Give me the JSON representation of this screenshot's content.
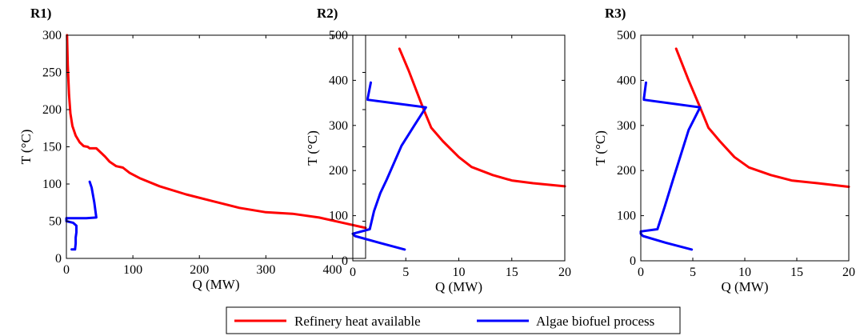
{
  "legend": {
    "items": [
      {
        "label": "Refinery heat available",
        "color": "#ff0000"
      },
      {
        "label": "Algae biofuel process",
        "color": "#0000ff"
      }
    ]
  },
  "chart_data": [
    {
      "type": "line",
      "panel_label": "R1)",
      "xlabel": "Q (MW)",
      "ylabel": "T (°C)",
      "xlim": [
        0,
        450
      ],
      "ylim": [
        0,
        300
      ],
      "xticks": [
        0,
        100,
        200,
        300,
        400
      ],
      "yticks": [
        0,
        50,
        100,
        150,
        200,
        250,
        300
      ],
      "grid": false,
      "series": [
        {
          "name": "Refinery heat available",
          "color": "#ff0000",
          "points": [
            [
              1,
              300
            ],
            [
              2,
              260
            ],
            [
              4,
              220
            ],
            [
              6,
              195
            ],
            [
              9,
              178
            ],
            [
              14,
              165
            ],
            [
              20,
              156
            ],
            [
              26,
              151
            ],
            [
              32,
              150
            ],
            [
              35,
              148
            ],
            [
              45,
              148
            ],
            [
              52,
              142
            ],
            [
              58,
              137
            ],
            [
              65,
              130
            ],
            [
              75,
              124
            ],
            [
              85,
              122
            ],
            [
              95,
              115
            ],
            [
              110,
              108
            ],
            [
              140,
              97
            ],
            [
              180,
              86
            ],
            [
              220,
              77
            ],
            [
              260,
              68
            ],
            [
              300,
              62
            ],
            [
              340,
              60
            ],
            [
              380,
              55
            ],
            [
              420,
              47
            ],
            [
              450,
              41
            ]
          ]
        },
        {
          "name": "Algae biofuel process",
          "color": "#0000ff",
          "points": [
            [
              35,
              103
            ],
            [
              38,
              95
            ],
            [
              42,
              75
            ],
            [
              45,
              55
            ],
            [
              30,
              54
            ],
            [
              0,
              54
            ],
            [
              0,
              50
            ],
            [
              10,
              48
            ],
            [
              15,
              44
            ],
            [
              15,
              35
            ],
            [
              14,
              28
            ],
            [
              14,
              20
            ],
            [
              13,
              12
            ],
            [
              8,
              12
            ]
          ]
        }
      ]
    },
    {
      "type": "line",
      "panel_label": "R2)",
      "xlabel": "Q (MW)",
      "ylabel": "T (°C)",
      "xlim": [
        0,
        20
      ],
      "ylim": [
        0,
        500
      ],
      "xticks": [
        0,
        5,
        10,
        15,
        20
      ],
      "yticks": [
        0,
        100,
        200,
        300,
        400,
        500
      ],
      "grid": false,
      "series": [
        {
          "name": "Refinery heat available",
          "color": "#ff0000",
          "points": [
            [
              4.4,
              470
            ],
            [
              5.3,
              420
            ],
            [
              6.6,
              340
            ],
            [
              7.4,
              295
            ],
            [
              8.5,
              265
            ],
            [
              10,
              230
            ],
            [
              11.2,
              208
            ],
            [
              13.2,
              190
            ],
            [
              15,
              178
            ],
            [
              17,
              172
            ],
            [
              20,
              165
            ]
          ]
        },
        {
          "name": "Algae biofuel process",
          "color": "#0000ff",
          "points": [
            [
              1.7,
              395
            ],
            [
              1.4,
              360
            ],
            [
              1.4,
              357
            ],
            [
              6.9,
              340
            ],
            [
              5.8,
              300
            ],
            [
              4.6,
              255
            ],
            [
              3.2,
              180
            ],
            [
              2.6,
              150
            ],
            [
              2.0,
              110
            ],
            [
              1.6,
              70
            ],
            [
              0,
              60
            ],
            [
              0.2,
              55
            ],
            [
              2.5,
              40
            ],
            [
              4.9,
              25
            ]
          ]
        }
      ]
    },
    {
      "type": "line",
      "panel_label": "R3)",
      "xlabel": "Q (MW)",
      "ylabel": "T (°C)",
      "xlim": [
        0,
        20
      ],
      "ylim": [
        0,
        500
      ],
      "xticks": [
        0,
        5,
        10,
        15,
        20
      ],
      "yticks": [
        0,
        100,
        200,
        300,
        400,
        500
      ],
      "grid": false,
      "series": [
        {
          "name": "Refinery heat available",
          "color": "#ff0000",
          "points": [
            [
              3.4,
              470
            ],
            [
              4.6,
              400
            ],
            [
              5.7,
              340
            ],
            [
              6.5,
              295
            ],
            [
              7.6,
              265
            ],
            [
              9,
              230
            ],
            [
              10.4,
              207
            ],
            [
              12.5,
              190
            ],
            [
              14.5,
              178
            ],
            [
              17,
              172
            ],
            [
              20,
              164
            ]
          ]
        },
        {
          "name": "Algae biofuel process",
          "color": "#0000ff",
          "points": [
            [
              0.5,
              395
            ],
            [
              0.3,
              360
            ],
            [
              0.3,
              357
            ],
            [
              5.7,
              340
            ],
            [
              4.6,
              290
            ],
            [
              3.1,
              180
            ],
            [
              2.3,
              120
            ],
            [
              1.6,
              70
            ],
            [
              0,
              65
            ],
            [
              0,
              60
            ],
            [
              0.2,
              55
            ],
            [
              2.4,
              40
            ],
            [
              4.9,
              25
            ]
          ]
        }
      ]
    }
  ]
}
